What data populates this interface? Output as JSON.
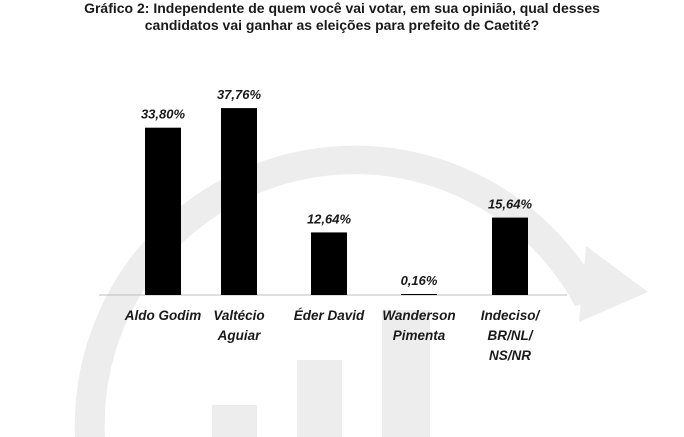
{
  "title_lines": [
    "Gráfico 2: Independente de quem você vai votar, em sua opinião, qual desses",
    "candidatos vai ganhar as eleições para prefeito de Caetité?"
  ],
  "chart_data": {
    "type": "bar",
    "title": "Gráfico 2: Independente de quem você vai votar, em sua opinião, qual desses candidatos vai ganhar as eleições para prefeito de Caetité?",
    "categories": [
      [
        "Aldo Godim"
      ],
      [
        "Valtécio",
        "Aguiar"
      ],
      [
        "Éder David"
      ],
      [
        "Wanderson",
        "Pimenta"
      ],
      [
        "Indeciso/",
        "BR/NL/",
        "NS/NR"
      ]
    ],
    "values": [
      33.8,
      37.76,
      12.64,
      0.16,
      15.64
    ],
    "value_labels": [
      "33,80%",
      "37,76%",
      "12,64%",
      "0,16%",
      "15,64%"
    ],
    "xlabel": "",
    "ylabel": "",
    "ylim": [
      0,
      40
    ],
    "grid": false,
    "legend": "none",
    "bar_color": "#000000",
    "watermark_color": "#ededed"
  }
}
